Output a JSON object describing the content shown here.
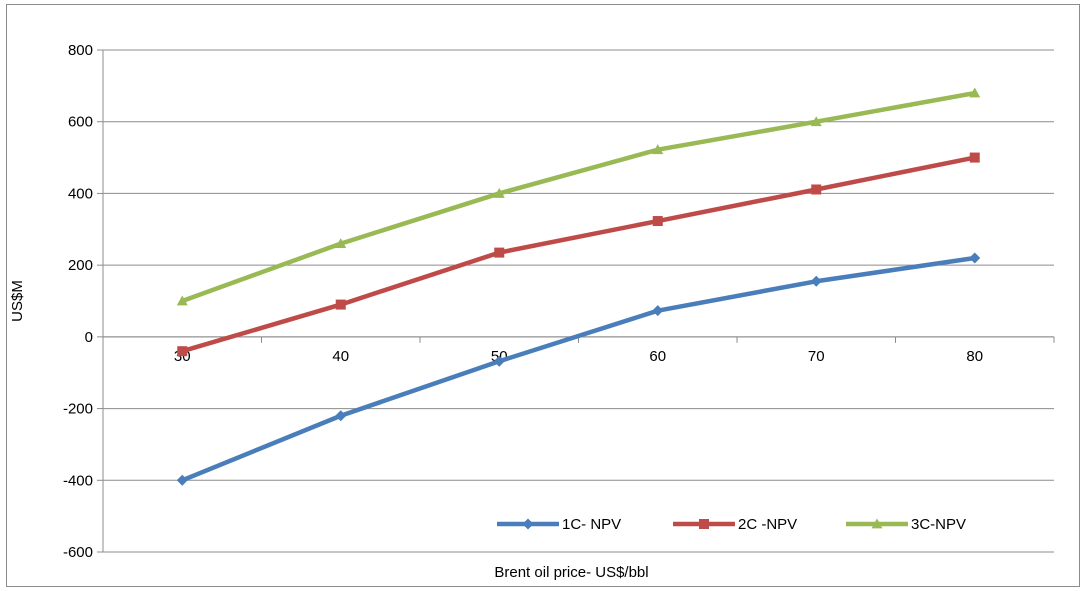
{
  "chart_data": {
    "type": "line",
    "title": "",
    "xlabel": "Brent oil price- US$/bbl",
    "ylabel": "US$M",
    "categories": [
      "30",
      "40",
      "50",
      "60",
      "70",
      "80"
    ],
    "ylim": [
      -600,
      800
    ],
    "yticks": [
      -600,
      -400,
      -200,
      0,
      200,
      400,
      600,
      800
    ],
    "grid": true,
    "legend_position": "bottom-right",
    "series": [
      {
        "name": "1C- NPV",
        "values": [
          -400,
          -220,
          -68,
          73,
          155,
          220
        ],
        "color": "#4a7ebb",
        "marker": "diamond"
      },
      {
        "name": "2C -NPV",
        "values": [
          -40,
          90,
          235,
          323,
          411,
          500
        ],
        "color": "#be4b48",
        "marker": "square"
      },
      {
        "name": "3C-NPV",
        "values": [
          100,
          260,
          400,
          522,
          600,
          680
        ],
        "color": "#98b954",
        "marker": "triangle"
      }
    ]
  }
}
